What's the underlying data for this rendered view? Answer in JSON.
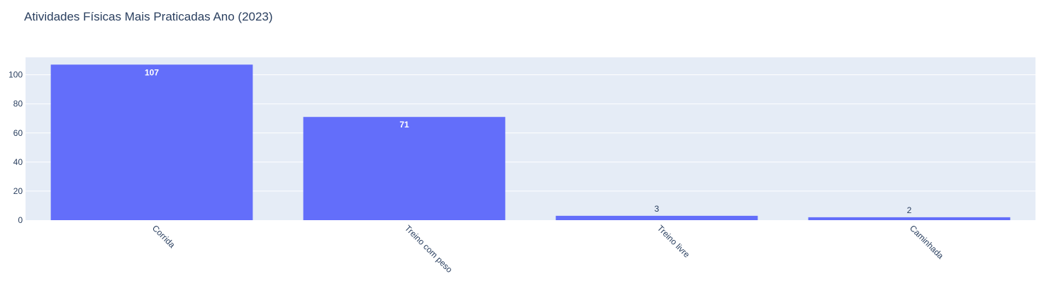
{
  "chart_data": {
    "type": "bar",
    "title": "Atividades Físicas Mais Praticadas Ano (2023)",
    "categories": [
      "Corrida",
      "Treino com peso",
      "Treino livre",
      "Caminhada"
    ],
    "values": [
      107,
      71,
      3,
      2
    ],
    "value_labels": [
      "107",
      "71",
      "3",
      "2"
    ],
    "xlabel": "",
    "ylabel": "",
    "ylim": [
      0,
      112
    ],
    "yticks": [
      0,
      20,
      40,
      60,
      80,
      100
    ],
    "ytick_labels": [
      "0",
      "20",
      "40",
      "60",
      "80",
      "100"
    ],
    "x_tick_rotation_deg": 45,
    "grid": true,
    "legend": "none"
  },
  "colors": {
    "bar": "#636efa",
    "plot_bg": "#e5ecf6",
    "grid": "#ffffff",
    "text": "#2a3f5f"
  }
}
